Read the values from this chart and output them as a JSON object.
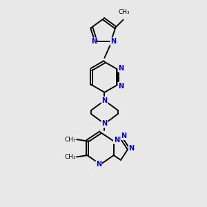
{
  "background_color": "#e8e8e8",
  "bond_color": "#000000",
  "atom_color": "#0000cd",
  "carbon_color": "#000000",
  "line_width": 1.4,
  "font_size": 7.0,
  "methyl_font_size": 6.5,
  "figsize": [
    3.0,
    3.0
  ],
  "dpi": 100,
  "xlim": [
    0,
    10
  ],
  "ylim": [
    0,
    10
  ]
}
